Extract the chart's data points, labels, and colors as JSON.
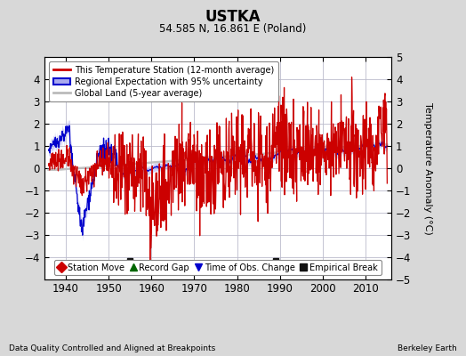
{
  "title": "USTKA",
  "subtitle": "54.585 N, 16.861 E (Poland)",
  "ylabel": "Temperature Anomaly (°C)",
  "xlabel_left": "Data Quality Controlled and Aligned at Breakpoints",
  "xlabel_right": "Berkeley Earth",
  "ylim": [
    -5,
    5
  ],
  "xlim": [
    1935,
    2016
  ],
  "xticks": [
    1940,
    1950,
    1960,
    1970,
    1980,
    1990,
    2000,
    2010
  ],
  "yticks_left": [
    -4,
    -3,
    -2,
    -1,
    0,
    1,
    2,
    3,
    4
  ],
  "yticks_right": [
    -5,
    -4,
    -3,
    -2,
    -1,
    0,
    1,
    2,
    3,
    4,
    5
  ],
  "bg_color": "#d8d8d8",
  "plot_bg_color": "#ffffff",
  "grid_color": "#bbbbcc",
  "red_color": "#cc0000",
  "blue_color": "#0000cc",
  "blue_fill_color": "#aaaaee",
  "gray_color": "#bbbbbb",
  "empirical_break_years": [
    1955,
    1989
  ],
  "legend_items": [
    "This Temperature Station (12-month average)",
    "Regional Expectation with 95% uncertainty",
    "Global Land (5-year average)"
  ],
  "bottom_legend": [
    {
      "marker": "D",
      "color": "#cc0000",
      "label": "Station Move"
    },
    {
      "marker": "^",
      "color": "#006600",
      "label": "Record Gap"
    },
    {
      "marker": "v",
      "color": "#0000cc",
      "label": "Time of Obs. Change"
    },
    {
      "marker": "s",
      "color": "#111111",
      "label": "Empirical Break"
    }
  ],
  "seed": 42,
  "start_year": 1936.0,
  "end_year": 2015.0
}
